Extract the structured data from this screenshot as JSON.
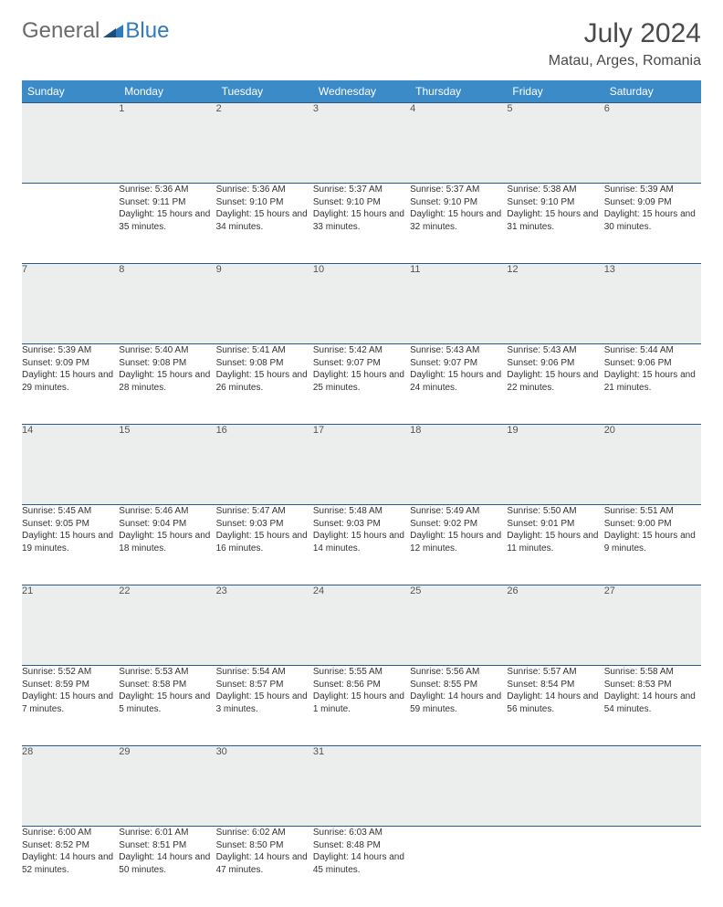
{
  "logo": {
    "general": "General",
    "blue": "Blue"
  },
  "title": "July 2024",
  "location": "Matau, Arges, Romania",
  "colors": {
    "header_bg": "#3b8bc8",
    "header_text": "#ffffff",
    "daynum_bg": "#eceded",
    "row_border": "#2a5a8a",
    "logo_general": "#6a6a6a",
    "logo_blue": "#2f7bbf"
  },
  "weekdays": [
    "Sunday",
    "Monday",
    "Tuesday",
    "Wednesday",
    "Thursday",
    "Friday",
    "Saturday"
  ],
  "weeks": [
    [
      null,
      {
        "d": "1",
        "sr": "Sunrise: 5:36 AM",
        "ss": "Sunset: 9:11 PM",
        "dl": "Daylight: 15 hours and 35 minutes."
      },
      {
        "d": "2",
        "sr": "Sunrise: 5:36 AM",
        "ss": "Sunset: 9:10 PM",
        "dl": "Daylight: 15 hours and 34 minutes."
      },
      {
        "d": "3",
        "sr": "Sunrise: 5:37 AM",
        "ss": "Sunset: 9:10 PM",
        "dl": "Daylight: 15 hours and 33 minutes."
      },
      {
        "d": "4",
        "sr": "Sunrise: 5:37 AM",
        "ss": "Sunset: 9:10 PM",
        "dl": "Daylight: 15 hours and 32 minutes."
      },
      {
        "d": "5",
        "sr": "Sunrise: 5:38 AM",
        "ss": "Sunset: 9:10 PM",
        "dl": "Daylight: 15 hours and 31 minutes."
      },
      {
        "d": "6",
        "sr": "Sunrise: 5:39 AM",
        "ss": "Sunset: 9:09 PM",
        "dl": "Daylight: 15 hours and 30 minutes."
      }
    ],
    [
      {
        "d": "7",
        "sr": "Sunrise: 5:39 AM",
        "ss": "Sunset: 9:09 PM",
        "dl": "Daylight: 15 hours and 29 minutes."
      },
      {
        "d": "8",
        "sr": "Sunrise: 5:40 AM",
        "ss": "Sunset: 9:08 PM",
        "dl": "Daylight: 15 hours and 28 minutes."
      },
      {
        "d": "9",
        "sr": "Sunrise: 5:41 AM",
        "ss": "Sunset: 9:08 PM",
        "dl": "Daylight: 15 hours and 26 minutes."
      },
      {
        "d": "10",
        "sr": "Sunrise: 5:42 AM",
        "ss": "Sunset: 9:07 PM",
        "dl": "Daylight: 15 hours and 25 minutes."
      },
      {
        "d": "11",
        "sr": "Sunrise: 5:43 AM",
        "ss": "Sunset: 9:07 PM",
        "dl": "Daylight: 15 hours and 24 minutes."
      },
      {
        "d": "12",
        "sr": "Sunrise: 5:43 AM",
        "ss": "Sunset: 9:06 PM",
        "dl": "Daylight: 15 hours and 22 minutes."
      },
      {
        "d": "13",
        "sr": "Sunrise: 5:44 AM",
        "ss": "Sunset: 9:06 PM",
        "dl": "Daylight: 15 hours and 21 minutes."
      }
    ],
    [
      {
        "d": "14",
        "sr": "Sunrise: 5:45 AM",
        "ss": "Sunset: 9:05 PM",
        "dl": "Daylight: 15 hours and 19 minutes."
      },
      {
        "d": "15",
        "sr": "Sunrise: 5:46 AM",
        "ss": "Sunset: 9:04 PM",
        "dl": "Daylight: 15 hours and 18 minutes."
      },
      {
        "d": "16",
        "sr": "Sunrise: 5:47 AM",
        "ss": "Sunset: 9:03 PM",
        "dl": "Daylight: 15 hours and 16 minutes."
      },
      {
        "d": "17",
        "sr": "Sunrise: 5:48 AM",
        "ss": "Sunset: 9:03 PM",
        "dl": "Daylight: 15 hours and 14 minutes."
      },
      {
        "d": "18",
        "sr": "Sunrise: 5:49 AM",
        "ss": "Sunset: 9:02 PM",
        "dl": "Daylight: 15 hours and 12 minutes."
      },
      {
        "d": "19",
        "sr": "Sunrise: 5:50 AM",
        "ss": "Sunset: 9:01 PM",
        "dl": "Daylight: 15 hours and 11 minutes."
      },
      {
        "d": "20",
        "sr": "Sunrise: 5:51 AM",
        "ss": "Sunset: 9:00 PM",
        "dl": "Daylight: 15 hours and 9 minutes."
      }
    ],
    [
      {
        "d": "21",
        "sr": "Sunrise: 5:52 AM",
        "ss": "Sunset: 8:59 PM",
        "dl": "Daylight: 15 hours and 7 minutes."
      },
      {
        "d": "22",
        "sr": "Sunrise: 5:53 AM",
        "ss": "Sunset: 8:58 PM",
        "dl": "Daylight: 15 hours and 5 minutes."
      },
      {
        "d": "23",
        "sr": "Sunrise: 5:54 AM",
        "ss": "Sunset: 8:57 PM",
        "dl": "Daylight: 15 hours and 3 minutes."
      },
      {
        "d": "24",
        "sr": "Sunrise: 5:55 AM",
        "ss": "Sunset: 8:56 PM",
        "dl": "Daylight: 15 hours and 1 minute."
      },
      {
        "d": "25",
        "sr": "Sunrise: 5:56 AM",
        "ss": "Sunset: 8:55 PM",
        "dl": "Daylight: 14 hours and 59 minutes."
      },
      {
        "d": "26",
        "sr": "Sunrise: 5:57 AM",
        "ss": "Sunset: 8:54 PM",
        "dl": "Daylight: 14 hours and 56 minutes."
      },
      {
        "d": "27",
        "sr": "Sunrise: 5:58 AM",
        "ss": "Sunset: 8:53 PM",
        "dl": "Daylight: 14 hours and 54 minutes."
      }
    ],
    [
      {
        "d": "28",
        "sr": "Sunrise: 6:00 AM",
        "ss": "Sunset: 8:52 PM",
        "dl": "Daylight: 14 hours and 52 minutes."
      },
      {
        "d": "29",
        "sr": "Sunrise: 6:01 AM",
        "ss": "Sunset: 8:51 PM",
        "dl": "Daylight: 14 hours and 50 minutes."
      },
      {
        "d": "30",
        "sr": "Sunrise: 6:02 AM",
        "ss": "Sunset: 8:50 PM",
        "dl": "Daylight: 14 hours and 47 minutes."
      },
      {
        "d": "31",
        "sr": "Sunrise: 6:03 AM",
        "ss": "Sunset: 8:48 PM",
        "dl": "Daylight: 14 hours and 45 minutes."
      },
      null,
      null,
      null
    ]
  ]
}
